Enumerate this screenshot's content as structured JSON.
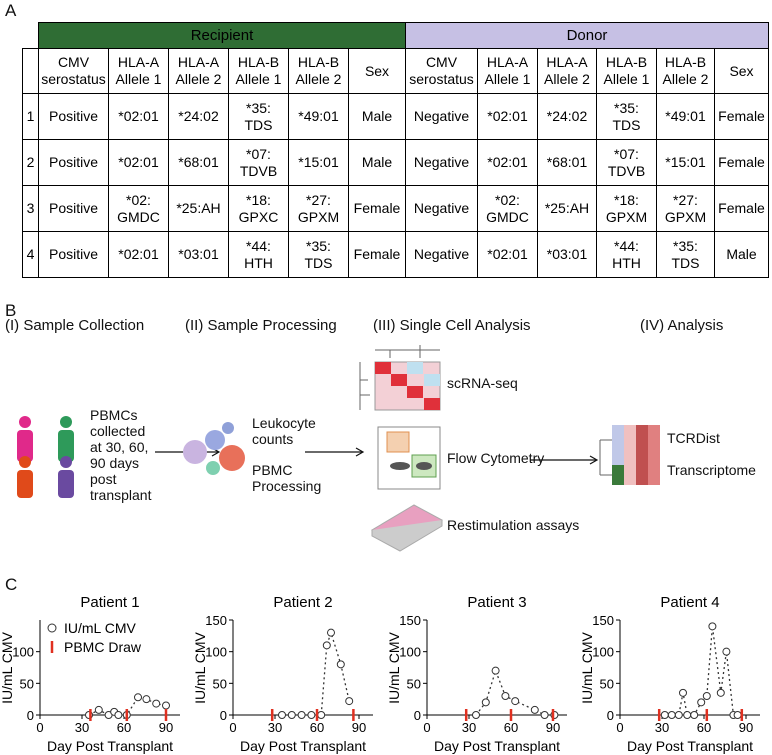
{
  "panel_labels": [
    "A",
    "B",
    "C"
  ],
  "table": {
    "groups": [
      "Recipient",
      "Donor"
    ],
    "columns": [
      "CMV\nserostatus",
      "HLA-A\nAllele 1",
      "HLA-A\nAllele 2",
      "HLA-B\nAllele 1",
      "HLA-B\nAllele 2",
      "Sex",
      "CMV\nserostatus",
      "HLA-A\nAllele 1",
      "HLA-A\nAllele 2",
      "HLA-B\nAllele 1",
      "HLA-B\nAllele 2",
      "Sex"
    ],
    "rows": [
      [
        "1",
        "Positive",
        "*02:01",
        "*24:02",
        "*35:\nTDS",
        "*49:01",
        "Male",
        "Negative",
        "*02:01",
        "*24:02",
        "*35:\nTDS",
        "*49:01",
        "Female"
      ],
      [
        "2",
        "Positive",
        "*02:01",
        "*68:01",
        "*07:\nTDVB",
        "*15:01",
        "Male",
        "Negative",
        "*02:01",
        "*68:01",
        "*07:\nTDVB",
        "*15:01",
        "Female"
      ],
      [
        "3",
        "Positive",
        "*02:\nGMDC",
        "*25:AH",
        "*18:\nGPXC",
        "*27:\nGPXM",
        "Female",
        "Negative",
        "*02:\nGMDC",
        "*25:AH",
        "*18:\nGPXM",
        "*27:\nGPXM",
        "Female"
      ],
      [
        "4",
        "Positive",
        "*02:01",
        "*03:01",
        "*44:\nHTH",
        "*35:\nTDS",
        "Female",
        "Negative",
        "*02:01",
        "*03:01",
        "*44:\nHTH",
        "*35:\nTDS",
        "Male"
      ]
    ]
  },
  "workflow": {
    "steps": [
      "(I) Sample Collection",
      "(II) Sample Processing",
      "(III) Single Cell Analysis",
      "(IV) Analysis"
    ],
    "collection": "PBMCs\ncollected\nat 30, 60,\n90 days\npost\ntransplant",
    "processing": [
      "Leukocyte\ncounts",
      "PBMC\nProcessing"
    ],
    "single_cell": [
      "scRNA-seq",
      "Flow Cytometry",
      "Restimulation assays"
    ],
    "analysis": [
      "TCRDist",
      "Transcriptome"
    ]
  },
  "chart_data": [
    {
      "type": "line",
      "title": "Patient 1",
      "x_label": "Day Post Transplant",
      "y_label": "IU/mL CMV",
      "xlim": [
        0,
        100
      ],
      "ylim": [
        0,
        150
      ],
      "xticks": [
        0,
        30,
        60,
        90
      ],
      "yticks": [
        0,
        50,
        100
      ],
      "legend": "upper left",
      "series": [
        {
          "name": "IU/mL CMV",
          "color": "#333333",
          "x": [
            35,
            42,
            49,
            53,
            56,
            62,
            70,
            76,
            83,
            90
          ],
          "values": [
            0,
            8,
            0,
            5,
            0,
            0,
            28,
            25,
            18,
            15
          ]
        },
        {
          "name": "PBMC Draw",
          "color": "#e03020",
          "x": [
            36,
            62,
            90
          ]
        }
      ]
    },
    {
      "type": "line",
      "title": "Patient 2",
      "x_label": "Day Post Transplant",
      "y_label": "IU/mL CMV",
      "xlim": [
        0,
        100
      ],
      "ylim": [
        0,
        150
      ],
      "xticks": [
        0,
        30,
        60,
        90
      ],
      "yticks": [
        0,
        50,
        100,
        150
      ],
      "series": [
        {
          "color": "#333333",
          "x": [
            35,
            42,
            49,
            56,
            63,
            67,
            70,
            77,
            83
          ],
          "values": [
            0,
            0,
            0,
            0,
            0,
            110,
            130,
            80,
            22
          ]
        },
        {
          "color": "#e03020",
          "x": [
            28,
            60,
            86
          ]
        }
      ]
    },
    {
      "type": "line",
      "title": "Patient 3",
      "x_label": "Day Post Transplant",
      "y_label": "IU/mL CMV",
      "xlim": [
        0,
        100
      ],
      "ylim": [
        0,
        150
      ],
      "xticks": [
        0,
        30,
        60,
        90
      ],
      "yticks": [
        0,
        50,
        100,
        150
      ],
      "series": [
        {
          "color": "#333333",
          "x": [
            35,
            42,
            49,
            56,
            63,
            77,
            84,
            91
          ],
          "values": [
            0,
            20,
            70,
            30,
            22,
            8,
            0,
            0
          ]
        },
        {
          "color": "#e03020",
          "x": [
            28,
            60,
            90
          ]
        }
      ]
    },
    {
      "type": "line",
      "title": "Patient 4",
      "x_label": "Day Post Transplant",
      "y_label": "IU/mL CMV",
      "xlim": [
        0,
        100
      ],
      "ylim": [
        0,
        150
      ],
      "xticks": [
        0,
        30,
        60,
        90
      ],
      "yticks": [
        0,
        50,
        100,
        150
      ],
      "series": [
        {
          "color": "#333333",
          "x": [
            32,
            37,
            42,
            45,
            48,
            53,
            58,
            62,
            66,
            72,
            76,
            81,
            84
          ],
          "values": [
            0,
            0,
            0,
            35,
            0,
            0,
            20,
            30,
            140,
            35,
            100,
            0,
            0
          ]
        },
        {
          "color": "#e03020",
          "x": [
            28,
            62,
            87
          ]
        }
      ]
    }
  ]
}
